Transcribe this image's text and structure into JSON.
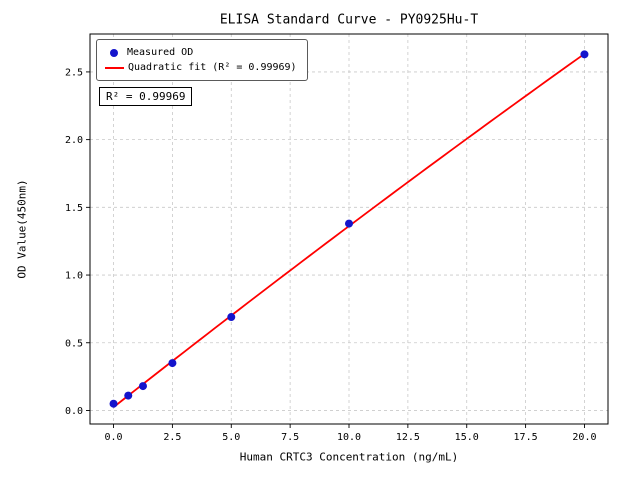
{
  "chart_data": {
    "type": "scatter",
    "title": "ELISA Standard Curve - PY0925Hu-T",
    "xlabel": "Human CRTC3 Concentration (ng/mL)",
    "ylabel": "OD Value(450nm)",
    "annotation": "R² = 0.99969",
    "xlim": [
      -1,
      21
    ],
    "ylim": [
      -0.1,
      2.78
    ],
    "xticks": [
      0,
      2.5,
      5,
      7.5,
      10,
      12.5,
      15,
      17.5,
      20
    ],
    "xtick_labels": [
      "0.0",
      "2.5",
      "5.0",
      "7.5",
      "10.0",
      "12.5",
      "15.0",
      "17.5",
      "20.0"
    ],
    "yticks": [
      0,
      0.5,
      1,
      1.5,
      2,
      2.5
    ],
    "ytick_labels": [
      "0.0",
      "0.5",
      "1.0",
      "1.5",
      "2.0",
      "2.5"
    ],
    "grid": true,
    "legend_position": "upper left",
    "series": [
      {
        "name": "Measured OD",
        "type": "scatter",
        "color": "#1414cc",
        "x": [
          0,
          0.625,
          1.25,
          2.5,
          5,
          10,
          20
        ],
        "y": [
          0.05,
          0.11,
          0.18,
          0.35,
          0.69,
          1.38,
          2.63
        ]
      },
      {
        "name": "Quadratic fit (R² = 0.99969)",
        "type": "line",
        "fit": "quadratic",
        "r_squared": 0.99969,
        "color": "#ff0000"
      }
    ],
    "colors": {
      "grid": "#c9c9c9",
      "axis": "#000000",
      "background": "#ffffff"
    }
  }
}
